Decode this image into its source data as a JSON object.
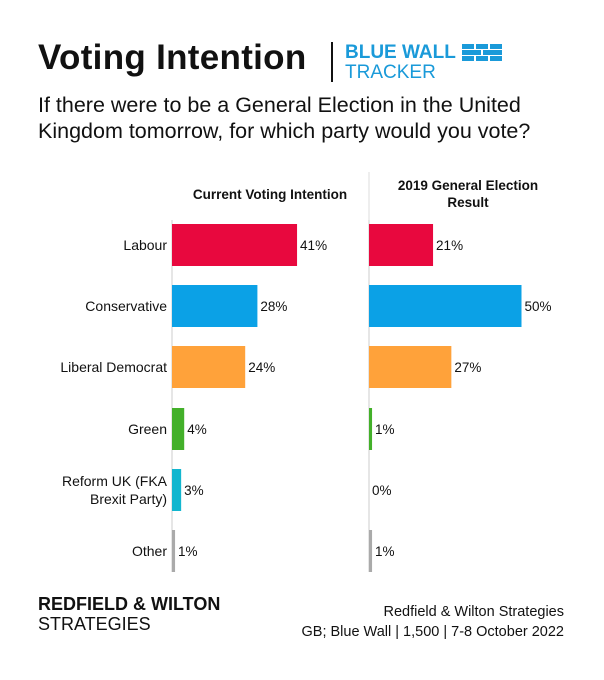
{
  "header": {
    "title": "Voting Intention",
    "logo_line1": "BLUE WALL",
    "logo_line2": "TRACKER",
    "question": "If there were to be a General Election in the United Kingdom tomorrow, for which party would you vote?"
  },
  "chart_data": {
    "type": "bar",
    "orientation": "horizontal",
    "categories": [
      "Labour",
      "Conservative",
      "Liberal Democrat",
      "Green",
      "Reform UK (FKA Brexit Party)",
      "Other"
    ],
    "category_lines": [
      [
        "Labour"
      ],
      [
        "Conservative"
      ],
      [
        "Liberal Democrat"
      ],
      [
        "Green"
      ],
      [
        "Reform UK (FKA",
        "Brexit Party)"
      ],
      [
        "Other"
      ]
    ],
    "colors": [
      "#e8083e",
      "#0ba1e6",
      "#ffa23a",
      "#43b02a",
      "#12b6cf",
      "#aaaaaa"
    ],
    "series": [
      {
        "name": "Current Voting Intention",
        "name_lines": [
          "Current Voting Intention"
        ],
        "values": [
          41,
          28,
          24,
          4,
          3,
          1
        ]
      },
      {
        "name": "2019 General Election Result",
        "name_lines": [
          "2019 General Election",
          "Result"
        ],
        "values": [
          21,
          50,
          27,
          1,
          0,
          1
        ]
      }
    ],
    "value_suffix": "%"
  },
  "footer": {
    "brand_line1": "REDFIELD & WILTON",
    "brand_line2": "STRATEGIES",
    "source_line1": "Redfield & Wilton Strategies",
    "source_line2": "GB; Blue Wall | 1,500 | 7-8 October 2022"
  }
}
